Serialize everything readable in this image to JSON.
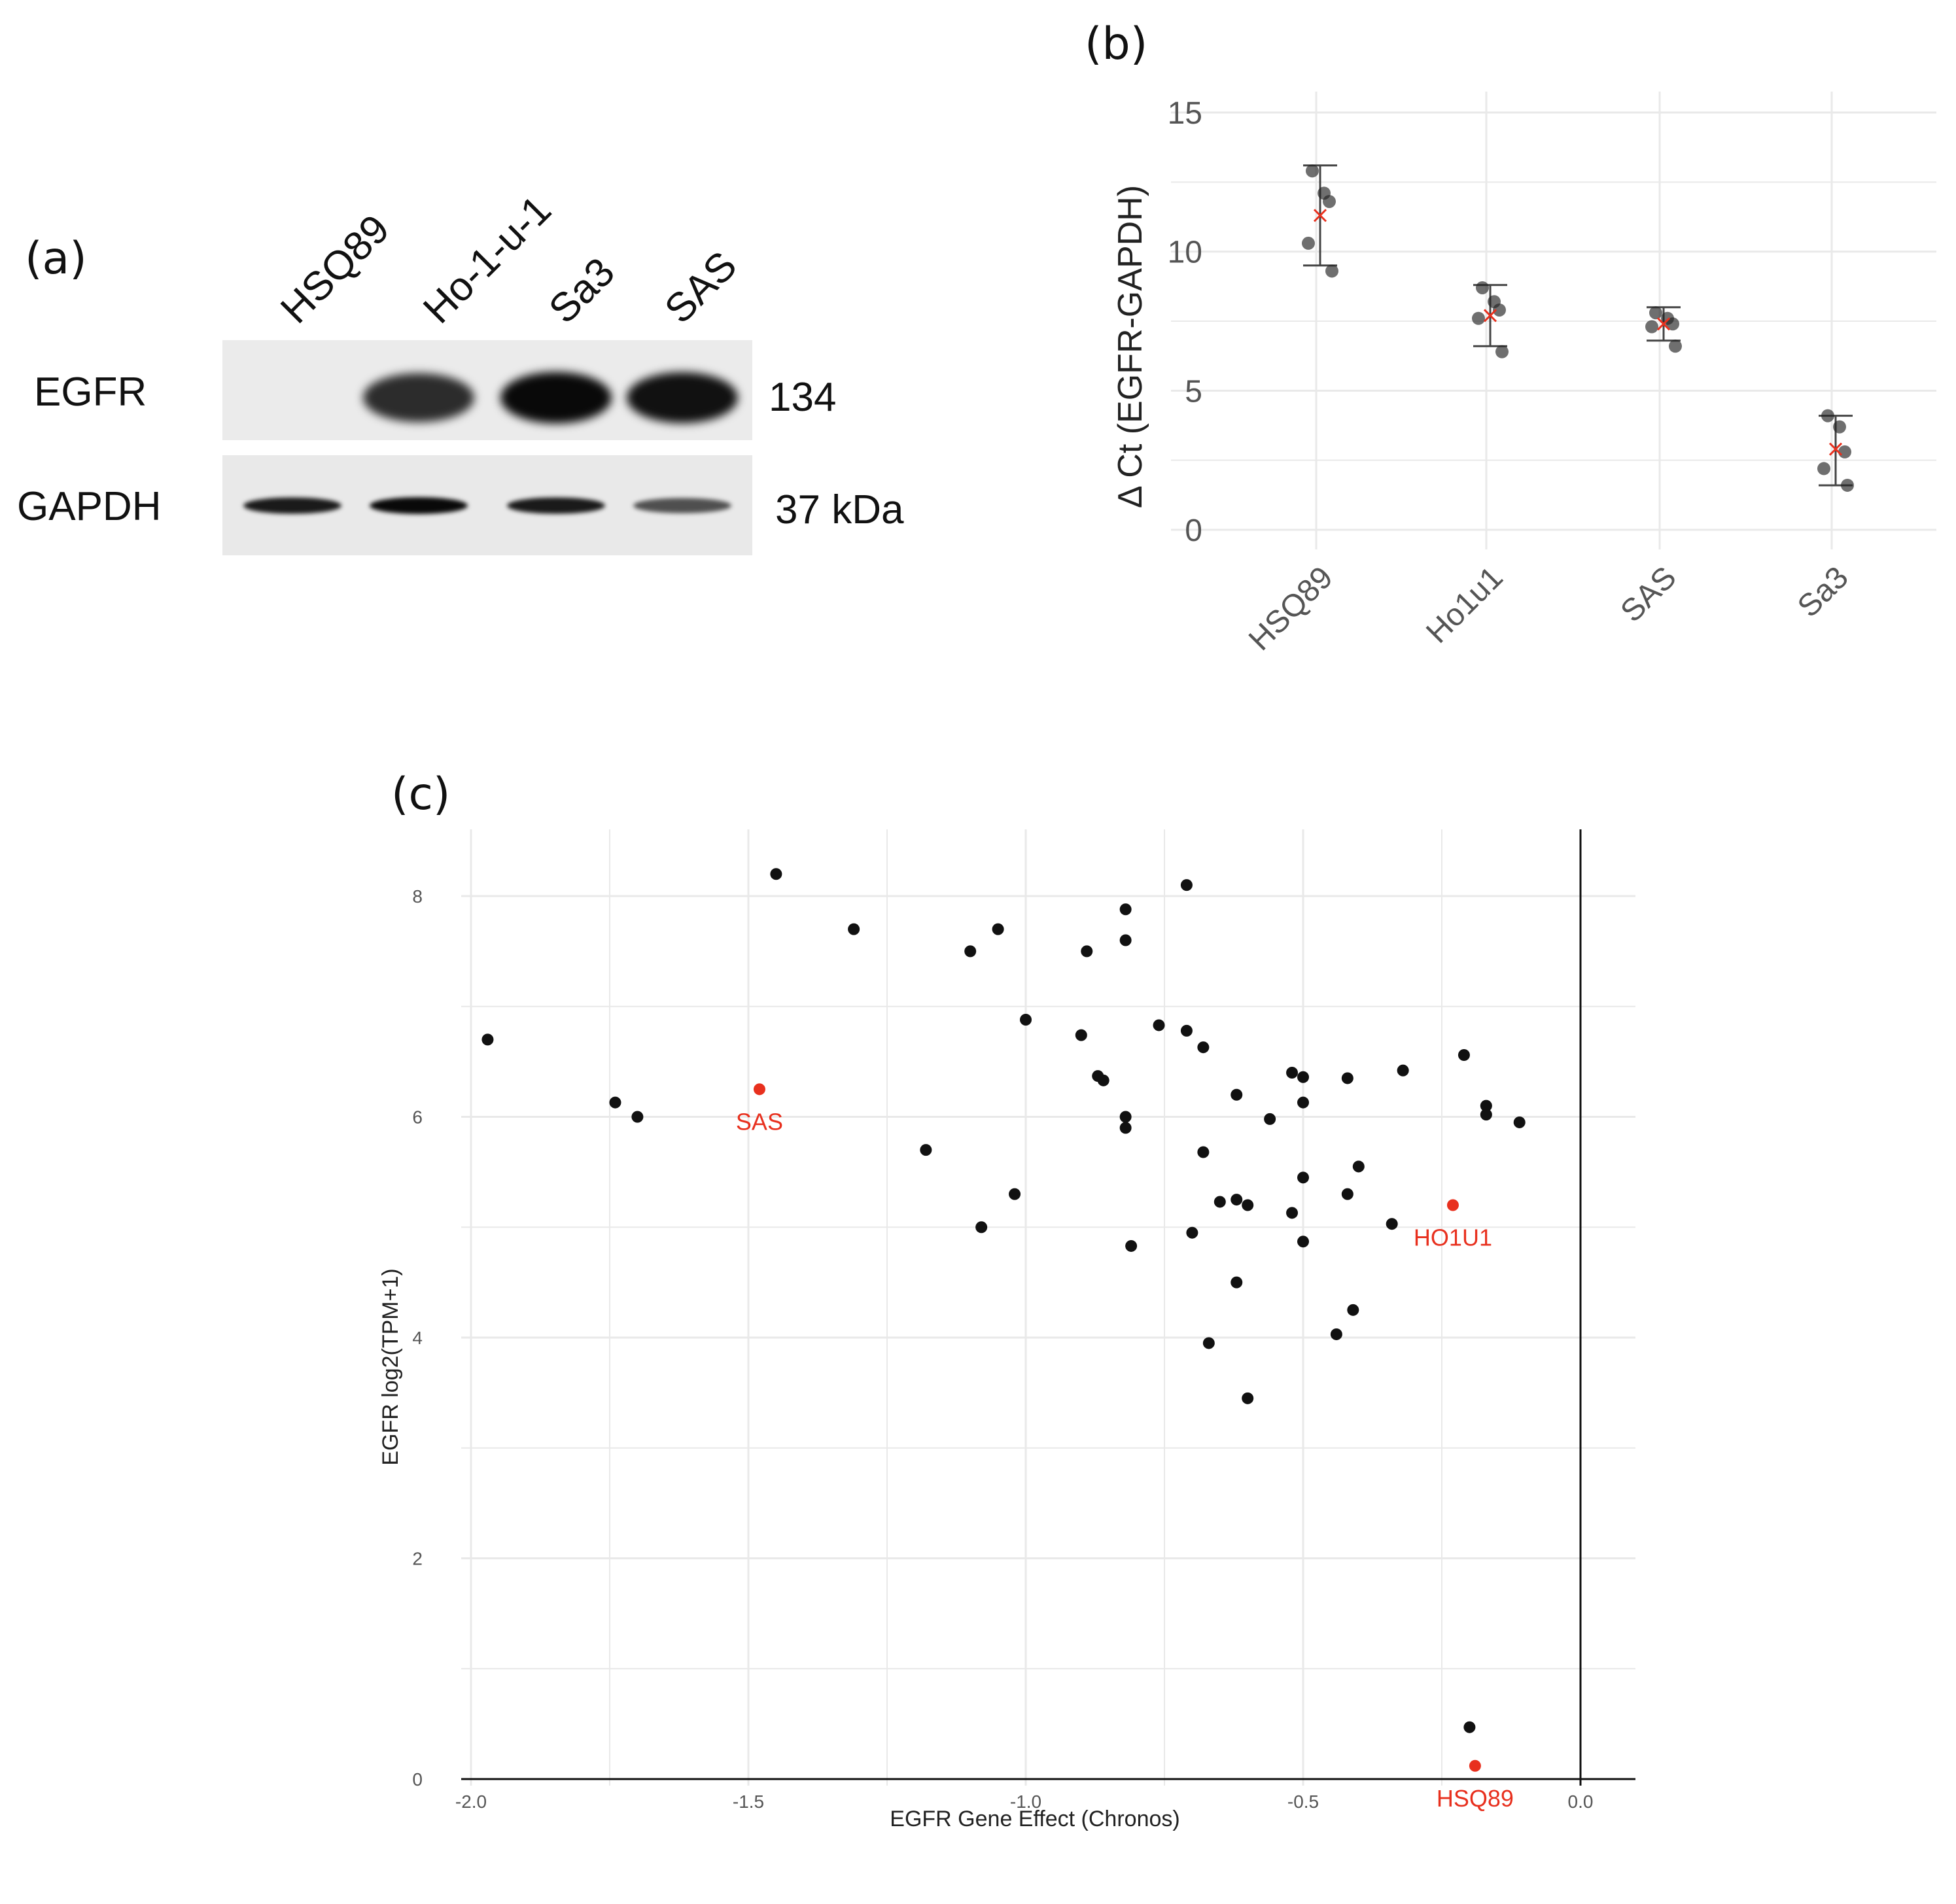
{
  "panels": {
    "a": {
      "label": "(a)",
      "lanes": [
        "HSQ89",
        "Ho-1-u-1",
        "Sa3",
        "SAS"
      ],
      "rows": [
        {
          "name": "EGFR",
          "size": "134",
          "band_intensity": [
            0.0,
            0.75,
            0.95,
            0.9
          ]
        },
        {
          "name": "GAPDH",
          "size": "37 kDa",
          "band_intensity": [
            0.85,
            0.95,
            0.85,
            0.55
          ]
        }
      ]
    },
    "b": {
      "label": "(b)"
    },
    "c": {
      "label": "(c)"
    }
  },
  "colors": {
    "highlight": "#e8301e",
    "point": "#111111",
    "grid": "#e9e9e9"
  },
  "chart_data": [
    {
      "id": "b",
      "type": "scatter",
      "ylabel": "Δ Ct (EGFR-GAPDH)",
      "xlabel": "",
      "categories": [
        "HSQ89",
        "Ho1u1",
        "SAS",
        "Sa3"
      ],
      "ylim": [
        0,
        15
      ],
      "yticks": [
        0,
        5,
        10,
        15
      ],
      "points": [
        [
          12.9,
          12.1,
          11.8,
          10.3,
          9.3
        ],
        [
          8.7,
          8.2,
          7.9,
          7.6,
          6.4
        ],
        [
          7.8,
          7.6,
          7.4,
          7.3,
          6.6
        ],
        [
          4.1,
          3.7,
          2.8,
          2.2,
          1.6
        ]
      ],
      "mean": [
        11.3,
        7.7,
        7.4,
        2.9
      ],
      "err_low": [
        9.5,
        6.6,
        6.8,
        1.6
      ],
      "err_high": [
        13.1,
        8.8,
        8.0,
        4.1
      ]
    },
    {
      "id": "c",
      "type": "scatter",
      "title": "",
      "xlabel": "EGFR Gene Effect (Chronos)",
      "ylabel": "EGFR log2(TPM+1)",
      "xlim": [
        -2.05,
        0.1
      ],
      "ylim": [
        -0.1,
        8.6
      ],
      "xticks": [
        -2.0,
        -1.5,
        -1.0,
        -0.5,
        0.0
      ],
      "xtick_labels": [
        "-2.0",
        "-1.5",
        "-1.0",
        "-0.5",
        "0.0"
      ],
      "yticks": [
        0,
        2,
        4,
        6,
        8
      ],
      "points": [
        [
          -1.97,
          6.7
        ],
        [
          -1.74,
          6.13
        ],
        [
          -1.7,
          6.0
        ],
        [
          -1.45,
          8.2
        ],
        [
          -1.31,
          7.7
        ],
        [
          -1.18,
          5.7
        ],
        [
          -1.1,
          7.5
        ],
        [
          -1.08,
          5.0
        ],
        [
          -1.05,
          7.7
        ],
        [
          -1.02,
          5.3
        ],
        [
          -1.0,
          6.88
        ],
        [
          -0.9,
          6.74
        ],
        [
          -0.89,
          7.5
        ],
        [
          -0.87,
          6.37
        ],
        [
          -0.86,
          6.33
        ],
        [
          -0.82,
          7.88
        ],
        [
          -0.82,
          7.6
        ],
        [
          -0.82,
          6.0
        ],
        [
          -0.82,
          5.9
        ],
        [
          -0.81,
          4.83
        ],
        [
          -0.76,
          6.83
        ],
        [
          -0.71,
          8.1
        ],
        [
          -0.71,
          6.78
        ],
        [
          -0.7,
          4.95
        ],
        [
          -0.68,
          6.63
        ],
        [
          -0.68,
          5.68
        ],
        [
          -0.67,
          3.95
        ],
        [
          -0.65,
          5.23
        ],
        [
          -0.62,
          6.2
        ],
        [
          -0.62,
          5.25
        ],
        [
          -0.62,
          4.5
        ],
        [
          -0.6,
          5.2
        ],
        [
          -0.6,
          3.45
        ],
        [
          -0.56,
          5.98
        ],
        [
          -0.52,
          6.4
        ],
        [
          -0.52,
          5.13
        ],
        [
          -0.5,
          6.36
        ],
        [
          -0.5,
          6.13
        ],
        [
          -0.5,
          5.45
        ],
        [
          -0.5,
          4.87
        ],
        [
          -0.44,
          4.03
        ],
        [
          -0.42,
          6.35
        ],
        [
          -0.42,
          5.3
        ],
        [
          -0.41,
          4.25
        ],
        [
          -0.4,
          5.55
        ],
        [
          -0.34,
          5.03
        ],
        [
          -0.32,
          6.42
        ],
        [
          -0.21,
          6.56
        ],
        [
          -0.2,
          0.47
        ],
        [
          -0.17,
          6.1
        ],
        [
          -0.17,
          6.02
        ],
        [
          -0.11,
          5.95
        ]
      ],
      "highlighted": [
        {
          "name": "SAS",
          "x": -1.48,
          "y": 6.25
        },
        {
          "name": "HO1U1",
          "x": -0.23,
          "y": 5.2
        },
        {
          "name": "HSQ89",
          "x": -0.19,
          "y": 0.12
        }
      ]
    }
  ]
}
